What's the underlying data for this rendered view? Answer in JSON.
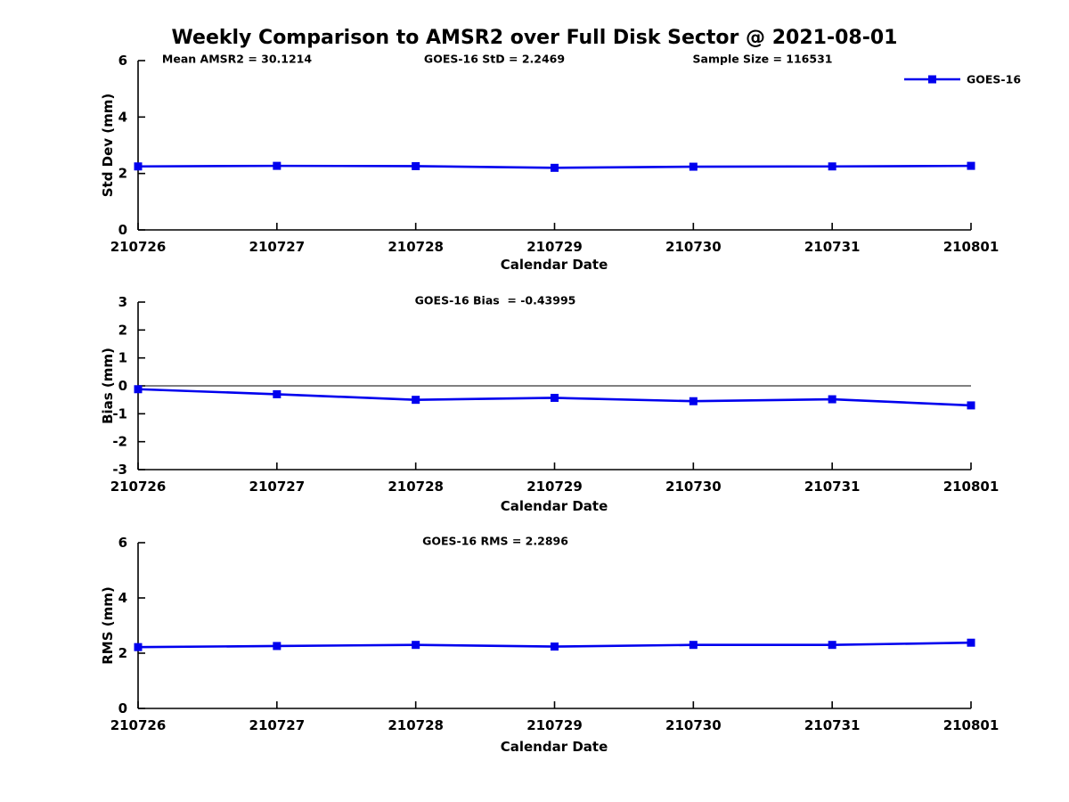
{
  "title": "Weekly Comparison to AMSR2 over Full Disk Sector @ 2021-08-01",
  "colors": {
    "line": "#0000EE",
    "axis": "#000000",
    "zero_line": "#000000"
  },
  "legend": {
    "label": "GOES-16"
  },
  "categories": [
    "210726",
    "210727",
    "210728",
    "210729",
    "210730",
    "210731",
    "210801"
  ],
  "chart_data": [
    {
      "type": "line",
      "series_name": "GOES-16",
      "ylabel": "Std Dev (mm)",
      "xlabel": "Calendar Date",
      "categories": [
        "210726",
        "210727",
        "210728",
        "210729",
        "210730",
        "210731",
        "210801"
      ],
      "values": [
        2.25,
        2.27,
        2.26,
        2.2,
        2.24,
        2.25,
        2.27
      ],
      "ylim": [
        0,
        6
      ],
      "yticks": [
        0,
        2,
        4,
        6
      ],
      "grid": false,
      "legend_position": "top-right-outside",
      "annotations": [
        "Mean AMSR2 = 30.1214",
        "GOES-16 StD = 2.2469",
        "Sample Size = 116531"
      ]
    },
    {
      "type": "line",
      "series_name": "GOES-16",
      "ylabel": "Bias (mm)",
      "xlabel": "Calendar Date",
      "categories": [
        "210726",
        "210727",
        "210728",
        "210729",
        "210730",
        "210731",
        "210801"
      ],
      "values": [
        -0.12,
        -0.3,
        -0.5,
        -0.43,
        -0.55,
        -0.48,
        -0.7
      ],
      "ylim": [
        -3,
        3
      ],
      "yticks": [
        -3,
        -2,
        -1,
        0,
        1,
        2,
        3
      ],
      "grid": false,
      "zero_line": true,
      "annotation": "GOES-16 Bias  = -0.43995"
    },
    {
      "type": "line",
      "series_name": "GOES-16",
      "ylabel": "RMS (mm)",
      "xlabel": "Calendar Date",
      "categories": [
        "210726",
        "210727",
        "210728",
        "210729",
        "210730",
        "210731",
        "210801"
      ],
      "values": [
        2.22,
        2.26,
        2.3,
        2.24,
        2.3,
        2.3,
        2.38
      ],
      "ylim": [
        0,
        6
      ],
      "yticks": [
        0,
        2,
        4,
        6
      ],
      "grid": false,
      "annotation": "GOES-16 RMS = 2.2896"
    }
  ]
}
